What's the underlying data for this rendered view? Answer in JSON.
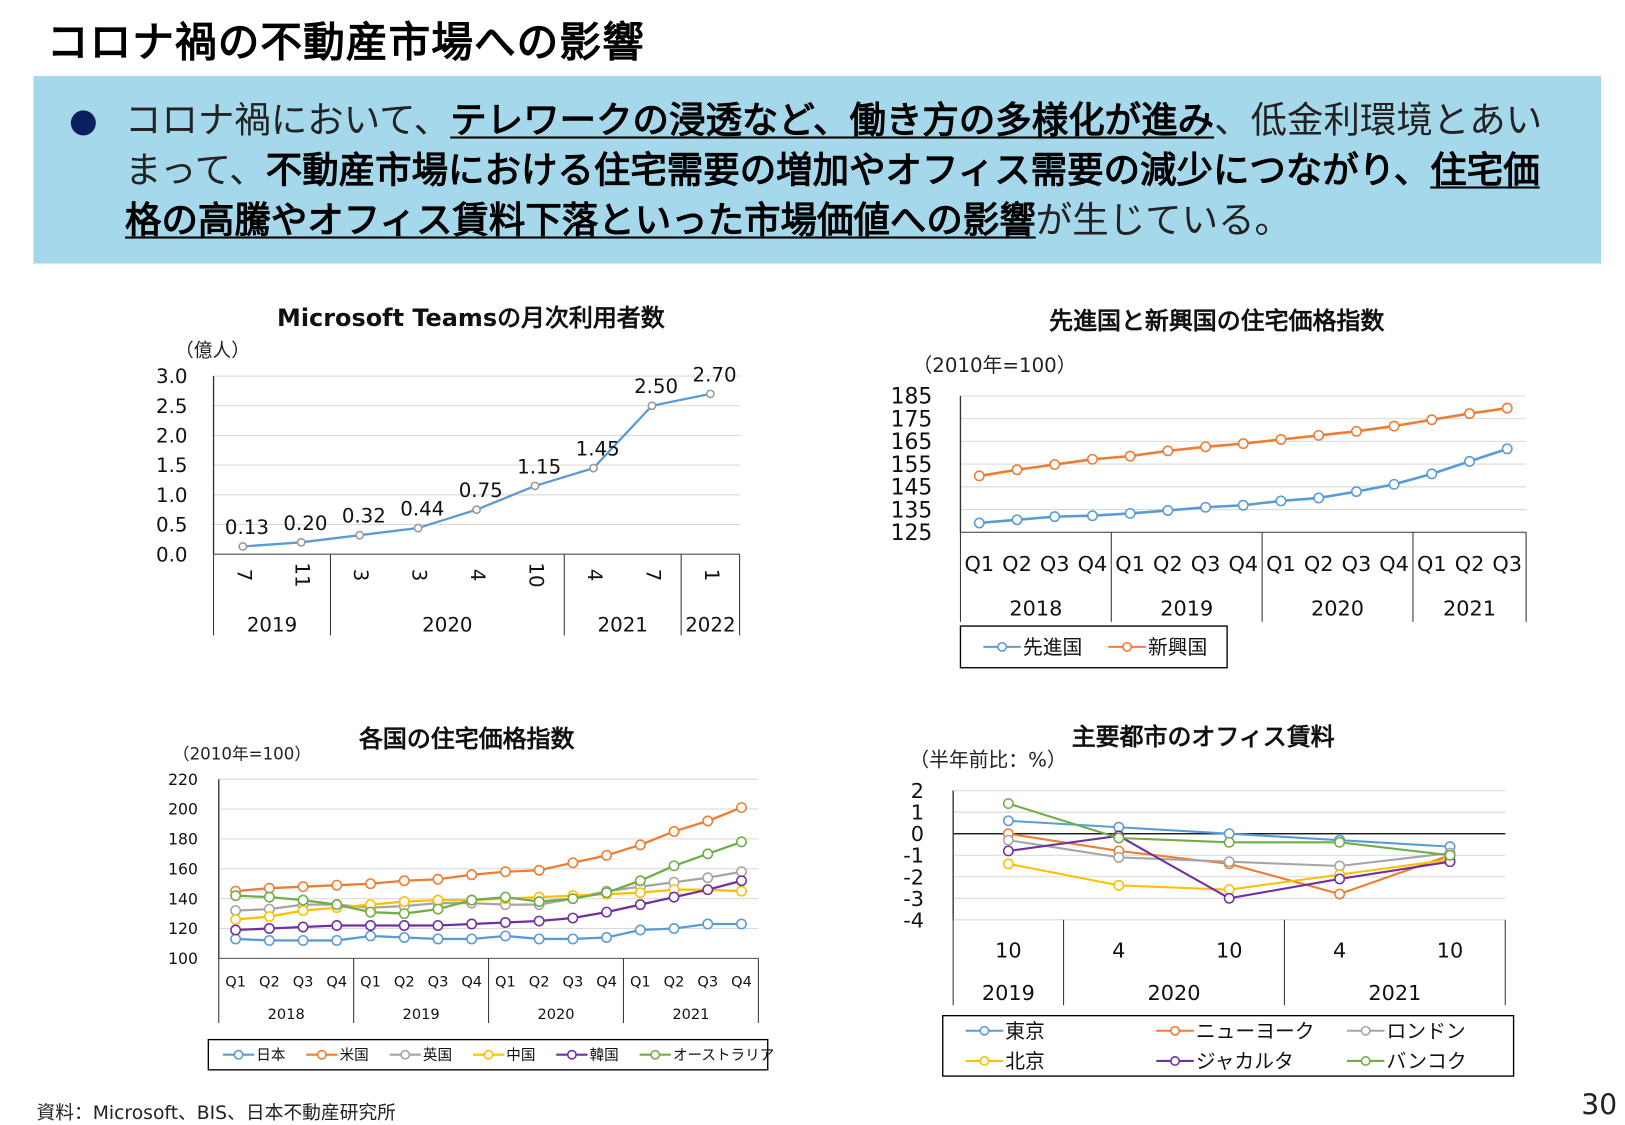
{
  "title": "コロナ禍の不動産市場への影響",
  "summary": {
    "segments": [
      "コロナ禍において、",
      "テレワークの浸透など、働き方の多様化が進み",
      "、低金利環境とあいまって、",
      "不動産市場における住宅需要の増加やオフィス需要の減少につながり、",
      "住宅価格の高騰やオフィス賃料下落といった市場価値への影響",
      "が生じている。"
    ],
    "box_color": "#a6d8ec",
    "bullet_color": "#0b1f5c"
  },
  "chart_data": [
    {
      "type": "line",
      "title": "Microsoft Teamsの月次利用者数",
      "unit": "（億人）",
      "yticks": [
        "3.0",
        "2.5",
        "2.0",
        "1.5",
        "1.0",
        "0.5",
        "0.0"
      ],
      "ylim": [
        0,
        3.0
      ],
      "grid": true,
      "categories": [
        "7",
        "11",
        "3",
        "3",
        "4",
        "10",
        "4",
        "7",
        "1"
      ],
      "groups": [
        {
          "label": "2019",
          "count": 2
        },
        {
          "label": "2020",
          "count": 4
        },
        {
          "label": "2021",
          "count": 2
        },
        {
          "label": "2022",
          "count": 1
        }
      ],
      "series": [
        {
          "values": [
            0.13,
            0.2,
            0.32,
            0.44,
            0.75,
            1.15,
            1.45,
            2.5,
            2.7
          ],
          "color": "#5b9bd5"
        }
      ],
      "data_labels": [
        "0.13",
        "0.20",
        "0.32",
        "0.44",
        "0.75",
        "1.15",
        "1.45",
        "2.50",
        "2.70"
      ]
    },
    {
      "type": "line",
      "title": "先進国と新興国の住宅価格指数",
      "unit": "（2010年=100）",
      "yticks": [
        "185",
        "175",
        "165",
        "155",
        "145",
        "135",
        "125"
      ],
      "ylim": [
        125,
        185
      ],
      "grid": true,
      "categories": [
        "Q1",
        "Q2",
        "Q3",
        "Q4",
        "Q1",
        "Q2",
        "Q3",
        "Q4",
        "Q1",
        "Q2",
        "Q3",
        "Q4",
        "Q1",
        "Q2",
        "Q3"
      ],
      "groups": [
        {
          "label": "2018",
          "count": 4
        },
        {
          "label": "2019",
          "count": 4
        },
        {
          "label": "2020",
          "count": 4
        },
        {
          "label": "2021",
          "count": 3
        }
      ],
      "legend_position": "bottom",
      "series": [
        {
          "name": "先進国",
          "color": "#5b9bd5",
          "values": [
            129.1,
            130.5,
            131.9,
            132.3,
            133.3,
            134.6,
            136.0,
            136.9,
            138.8,
            140.1,
            142.9,
            146.1,
            150.7,
            156.2,
            161.7
          ]
        },
        {
          "name": "新興国",
          "color": "#ed7d31",
          "values": [
            149.8,
            152.5,
            154.8,
            157.1,
            158.5,
            160.8,
            162.6,
            164.0,
            165.8,
            167.6,
            169.4,
            171.7,
            174.5,
            177.2,
            179.6
          ]
        }
      ]
    },
    {
      "type": "line",
      "title": "各国の住宅価格指数",
      "unit": "（2010年=100）",
      "yticks": [
        "220",
        "200",
        "180",
        "160",
        "140",
        "120",
        "100"
      ],
      "ylim": [
        100,
        220
      ],
      "grid": true,
      "categories": [
        "Q1",
        "Q2",
        "Q3",
        "Q4",
        "Q1",
        "Q2",
        "Q3",
        "Q4",
        "Q1",
        "Q2",
        "Q3",
        "Q4",
        "Q1",
        "Q2",
        "Q3",
        "Q4"
      ],
      "groups": [
        {
          "label": "2018",
          "count": 4
        },
        {
          "label": "2019",
          "count": 4
        },
        {
          "label": "2020",
          "count": 4
        },
        {
          "label": "2021",
          "count": 4
        }
      ],
      "legend_position": "bottom",
      "series": [
        {
          "name": "日本",
          "color": "#5b9bd5",
          "values": [
            113,
            112,
            112,
            112,
            115,
            114,
            113,
            113,
            115,
            113,
            113,
            114,
            119,
            120,
            123,
            123
          ]
        },
        {
          "name": "米国",
          "color": "#ed7d31",
          "values": [
            145,
            147,
            148,
            149,
            150,
            152,
            153,
            156,
            158,
            159,
            164,
            169,
            176,
            185,
            192,
            201
          ]
        },
        {
          "name": "英国",
          "color": "#a5a5a5",
          "values": [
            132,
            133,
            136,
            136,
            134,
            135,
            137,
            137,
            136,
            136,
            140,
            145,
            148,
            151,
            154,
            158
          ]
        },
        {
          "name": "中国",
          "color": "#ffc000",
          "values": [
            126,
            128,
            132,
            134,
            136,
            138,
            139,
            139,
            140,
            141,
            142,
            143,
            144,
            146,
            146,
            145
          ]
        },
        {
          "name": "韓国",
          "color": "#7030a0",
          "values": [
            119,
            120,
            121,
            122,
            122,
            122,
            122,
            123,
            124,
            125,
            127,
            131,
            136,
            141,
            146,
            152
          ]
        },
        {
          "name": "オーストラリア",
          "color": "#70ad47",
          "values": [
            142,
            141,
            139,
            136,
            131,
            130,
            133,
            139,
            141,
            138,
            140,
            144,
            152,
            162,
            170,
            178
          ]
        }
      ]
    },
    {
      "type": "line",
      "title": "主要都市のオフィス賃料",
      "unit": "（半年前比：%）",
      "yticks": [
        "2",
        "1",
        "0",
        "-1",
        "-2",
        "-3",
        "-4"
      ],
      "ylim": [
        -4,
        2
      ],
      "grid": true,
      "categories": [
        "10",
        "4",
        "10",
        "4",
        "10"
      ],
      "groups": [
        {
          "label": "2019",
          "count": 1
        },
        {
          "label": "2020",
          "count": 2
        },
        {
          "label": "2021",
          "count": 2
        }
      ],
      "legend_position": "bottom",
      "series": [
        {
          "name": "東京",
          "color": "#5b9bd5",
          "values": [
            0.6,
            0.3,
            0.0,
            -0.3,
            -0.6
          ]
        },
        {
          "name": "ニューヨーク",
          "color": "#ed7d31",
          "values": [
            0.0,
            -0.8,
            -1.4,
            -2.8,
            -1.0
          ]
        },
        {
          "name": "ロンドン",
          "color": "#a5a5a5",
          "values": [
            -0.3,
            -1.1,
            -1.3,
            -1.5,
            -0.9
          ]
        },
        {
          "name": "北京",
          "color": "#ffc000",
          "values": [
            -1.4,
            -2.4,
            -2.6,
            -1.9,
            -1.2
          ]
        },
        {
          "name": "ジャカルタ",
          "color": "#7030a0",
          "values": [
            -0.8,
            -0.1,
            -3.0,
            -2.1,
            -1.3
          ]
        },
        {
          "name": "バンコク",
          "color": "#70ad47",
          "values": [
            1.4,
            -0.2,
            -0.4,
            -0.4,
            -1.0
          ]
        }
      ]
    }
  ],
  "footer": {
    "source": "資料：Microsoft、BIS、日本不動産研究所",
    "page_number": "30"
  }
}
